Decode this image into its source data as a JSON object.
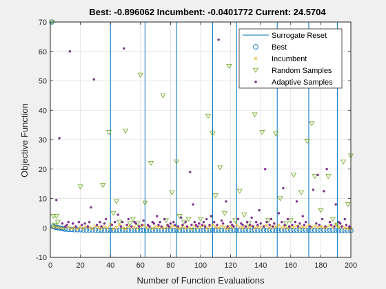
{
  "chart_data": {
    "type": "scatter",
    "title": "Best: -0.896062 Incumbent: -0.0401772 Current: 24.5704",
    "xlabel": "Number of Function Evaluations",
    "ylabel": "Objective Function",
    "xlim": [
      0,
      200
    ],
    "ylim": [
      -10,
      70
    ],
    "xticks": [
      0,
      20,
      40,
      60,
      80,
      100,
      120,
      140,
      160,
      180,
      200
    ],
    "yticks": [
      -10,
      0,
      10,
      20,
      30,
      40,
      50,
      60,
      70
    ],
    "grid": true,
    "legend_position": "top-right",
    "colors": {
      "reset": "#0072BD",
      "best": "#0072BD",
      "incumbent": "#EDB120",
      "random": "#77AC30",
      "adaptive": "#7E2F8E"
    },
    "series": [
      {
        "name": "Surrogate Reset",
        "kind": "vline",
        "x": [
          40,
          63,
          84,
          108,
          124,
          151,
          172,
          191
        ]
      },
      {
        "name": "Best",
        "kind": "circle",
        "x": [
          1,
          2,
          3,
          4,
          5,
          6,
          7,
          8,
          9,
          10,
          12,
          14,
          16,
          18,
          20,
          22,
          24,
          26,
          28,
          30,
          32,
          34,
          36,
          38,
          40,
          42,
          44,
          46,
          48,
          50,
          52,
          54,
          56,
          58,
          60,
          62,
          64,
          66,
          68,
          70,
          72,
          74,
          76,
          78,
          80,
          82,
          84,
          86,
          88,
          90,
          92,
          94,
          96,
          98,
          100,
          102,
          104,
          106,
          108,
          110,
          112,
          114,
          116,
          118,
          120,
          122,
          124,
          126,
          128,
          130,
          132,
          134,
          136,
          138,
          140,
          142,
          144,
          146,
          148,
          150,
          152,
          154,
          156,
          158,
          160,
          162,
          164,
          166,
          168,
          170,
          172,
          174,
          176,
          178,
          180,
          182,
          184,
          186,
          188,
          190,
          192,
          194,
          196,
          198,
          200
        ],
        "y": [
          70,
          0.5,
          0.3,
          0.2,
          0.1,
          0,
          -0.1,
          -0.2,
          -0.3,
          -0.4,
          -0.5,
          -0.5,
          -0.6,
          -0.6,
          -0.6,
          -0.7,
          -0.7,
          -0.7,
          -0.7,
          -0.7,
          -0.8,
          -0.8,
          -0.8,
          -0.8,
          -0.8,
          -0.8,
          -0.8,
          -0.8,
          -0.8,
          -0.8,
          -0.8,
          -0.8,
          -0.8,
          -0.8,
          -0.8,
          -0.8,
          -0.8,
          -0.8,
          -0.8,
          -0.8,
          -0.8,
          -0.8,
          -0.8,
          -0.8,
          -0.8,
          -0.8,
          -0.8,
          -0.8,
          -0.8,
          -0.8,
          -0.8,
          -0.8,
          -0.8,
          -0.8,
          -0.8,
          -0.8,
          -0.8,
          -0.8,
          -0.8,
          -0.8,
          -0.8,
          -0.8,
          -0.8,
          -0.8,
          -0.8,
          -0.8,
          -0.8,
          -0.8,
          -0.8,
          -0.8,
          -0.8,
          -0.8,
          -0.8,
          -0.8,
          -0.8,
          -0.8,
          -0.8,
          -0.8,
          -0.8,
          -0.8,
          -0.8,
          -0.8,
          -0.8,
          -0.8,
          -0.8,
          -0.8,
          -0.8,
          -0.8,
          -0.8,
          -0.8,
          -0.8,
          -0.8,
          -0.8,
          -0.8,
          -0.8,
          -0.8,
          -0.8,
          -0.8,
          -0.8,
          -0.9,
          -0.9,
          -0.9,
          -0.9,
          -0.9,
          -0.9
        ]
      },
      {
        "name": "Incumbent",
        "kind": "x",
        "x": [
          2,
          4,
          6,
          8,
          10,
          12,
          14,
          16,
          18,
          20,
          22,
          24,
          26,
          28,
          30,
          32,
          34,
          36,
          38,
          40,
          42,
          44,
          46,
          48,
          50,
          52,
          54,
          56,
          58,
          60,
          62,
          64,
          66,
          68,
          70,
          72,
          74,
          76,
          78,
          80,
          82,
          84,
          86,
          88,
          90,
          92,
          94,
          96,
          98,
          100,
          102,
          104,
          106,
          108,
          110,
          112,
          114,
          116,
          118,
          120,
          122,
          124,
          126,
          128,
          130,
          132,
          134,
          136,
          138,
          140,
          142,
          144,
          146,
          148,
          150,
          152,
          154,
          156,
          158,
          160,
          162,
          164,
          166,
          168,
          170,
          172,
          174,
          176,
          178,
          180,
          182,
          184,
          186,
          188,
          190,
          192,
          194,
          196,
          198,
          200
        ],
        "y": [
          0.5,
          0.3,
          0.1,
          -0.1,
          0.2,
          0.4,
          -0.2,
          0.0,
          -0.3,
          0.3,
          -0.1,
          0.5,
          0.1,
          -0.2,
          0.6,
          0.2,
          -0.1,
          0.4,
          0.0,
          1.2,
          -0.3,
          0.2,
          0.8,
          0.0,
          -0.2,
          0.5,
          0.1,
          0.3,
          -0.1,
          0.6,
          0.9,
          0.1,
          0.3,
          -0.2,
          0.4,
          0.2,
          0.0,
          -0.1,
          0.5,
          0.3,
          0.7,
          0.1,
          -0.2,
          0.4,
          0.0,
          0.2,
          -0.3,
          0.6,
          0.1,
          0.3,
          0.8,
          -0.1,
          0.2,
          1.0,
          0.4,
          0.0,
          0.6,
          0.2,
          -0.2,
          0.5,
          0.1,
          1.1,
          0.3,
          0.0,
          0.4,
          0.2,
          0.6,
          -0.1,
          0.3,
          0.1,
          0.5,
          0.8,
          0.0,
          0.2,
          0.4,
          0.9,
          0.1,
          0.3,
          -0.1,
          0.5,
          0.2,
          0.7,
          0.0,
          0.4,
          0.1,
          1.0,
          0.3,
          0.6,
          0.2,
          0.5,
          0.0,
          0.3,
          0.8,
          0.1,
          0.9,
          0.4,
          0.2,
          0.0,
          -0.2,
          -0.1
        ]
      },
      {
        "name": "Random Samples",
        "kind": "triangle",
        "x": [
          1,
          2,
          3,
          4,
          5,
          20,
          35,
          39,
          42,
          44,
          46,
          50,
          53,
          55,
          58,
          60,
          63,
          67,
          75,
          77,
          81,
          84,
          86,
          89,
          92,
          100,
          105,
          108,
          110,
          113,
          116,
          119,
          123,
          126,
          129,
          132,
          136,
          141,
          145,
          150,
          153,
          157,
          160,
          162,
          167,
          171,
          174,
          176,
          180,
          185,
          188,
          191,
          195,
          198,
          200
        ],
        "y": [
          70,
          4,
          1,
          4,
          2,
          14,
          14.5,
          32.5,
          5,
          9,
          2,
          33,
          1.5,
          3,
          1.5,
          52,
          8.5,
          22,
          45,
          2.5,
          12,
          22.5,
          4,
          2,
          3,
          3,
          38,
          32,
          11,
          20.5,
          5,
          55,
          2.5,
          12.5,
          4.5,
          1.5,
          38.5,
          32.5,
          2.5,
          32,
          10,
          1.5,
          2.5,
          18,
          12,
          29.5,
          35.5,
          17.5,
          6,
          17.5,
          3,
          1,
          22.5,
          8,
          24.5
        ]
      },
      {
        "name": "Adaptive Samples",
        "kind": "dot",
        "x": [
          4,
          6,
          8,
          10,
          11,
          12,
          13,
          15,
          17,
          19,
          21,
          23,
          25,
          26,
          27,
          29,
          31,
          33,
          34,
          36,
          37,
          41,
          43,
          45,
          47,
          48,
          49,
          51,
          52,
          54,
          56,
          57,
          59,
          61,
          62,
          65,
          66,
          68,
          69,
          71,
          72,
          73,
          74,
          76,
          78,
          79,
          80,
          82,
          83,
          85,
          87,
          88,
          90,
          91,
          93,
          94,
          95,
          96,
          97,
          98,
          99,
          101,
          102,
          103,
          104,
          106,
          107,
          109,
          111,
          112,
          114,
          115,
          117,
          118,
          120,
          121,
          122,
          125,
          127,
          128,
          130,
          131,
          133,
          134,
          135,
          137,
          138,
          139,
          140,
          142,
          143,
          144,
          146,
          147,
          148,
          149,
          152,
          154,
          155,
          156,
          158,
          159,
          161,
          163,
          164,
          165,
          166,
          168,
          169,
          170,
          173,
          175,
          177,
          178,
          179,
          181,
          182,
          183,
          184,
          186,
          187,
          189,
          190,
          192,
          193,
          194,
          196,
          197,
          199
        ],
        "y": [
          9.5,
          30.5,
          1.5,
          0.5,
          1,
          2,
          60,
          1.5,
          0.5,
          2,
          1,
          1.5,
          0.5,
          2,
          7,
          50.5,
          1,
          2,
          0.5,
          1.5,
          3,
          1,
          2,
          4.5,
          0.5,
          2,
          61,
          1,
          3,
          0.5,
          2,
          1.5,
          0.5,
          1,
          2.5,
          1,
          0.5,
          2,
          1.5,
          4,
          1,
          2,
          0.5,
          3,
          1,
          0.5,
          1.5,
          2,
          1,
          0.5,
          3.5,
          1,
          2,
          0.5,
          19,
          1,
          8,
          2,
          1,
          0.5,
          1.5,
          1,
          2,
          0.5,
          3,
          1,
          4,
          2,
          1,
          64,
          2.5,
          1.5,
          9,
          0.5,
          2,
          1,
          0.5,
          3,
          1.5,
          1,
          0.5,
          2,
          1,
          3.5,
          0.5,
          2,
          1,
          6,
          1.5,
          0.5,
          20,
          2,
          1,
          3,
          0.5,
          1.5,
          5,
          2,
          13.5,
          1,
          3,
          0.5,
          1,
          2,
          9,
          0.5,
          1.5,
          4,
          1,
          2,
          0.5,
          13,
          1.5,
          18,
          1,
          3,
          12.5,
          0.5,
          20,
          2,
          1,
          0.5,
          8,
          2,
          1.5,
          0.5,
          3,
          1,
          0.5
        ]
      }
    ]
  }
}
